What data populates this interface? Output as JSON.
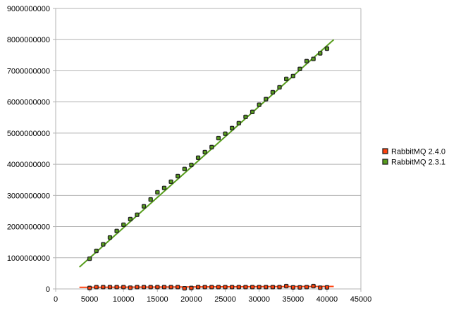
{
  "chart_data": {
    "type": "scatter",
    "xlim": [
      0,
      45000
    ],
    "ylim": [
      0,
      9000000000
    ],
    "xticks": [
      0,
      5000,
      10000,
      15000,
      20000,
      25000,
      30000,
      35000,
      40000,
      45000
    ],
    "yticks": [
      0,
      1000000000,
      2000000000,
      3000000000,
      4000000000,
      5000000000,
      6000000000,
      7000000000,
      8000000000,
      9000000000
    ],
    "grid": true,
    "legend_position": "right",
    "x": [
      5000,
      6000,
      7000,
      8000,
      9000,
      10000,
      11000,
      12000,
      13000,
      14000,
      15000,
      16000,
      17000,
      18000,
      19000,
      20000,
      21000,
      22000,
      23000,
      24000,
      25000,
      26000,
      27000,
      28000,
      29000,
      30000,
      31000,
      32000,
      33000,
      34000,
      35000,
      36000,
      37000,
      38000,
      39000,
      40000
    ],
    "series": [
      {
        "name": "RabbitMQ 2.4.0",
        "color": "#ff420e",
        "trendline": [
          [
            3500,
            50000000
          ],
          [
            41000,
            80000000
          ]
        ],
        "values": [
          30000000,
          60000000,
          60000000,
          60000000,
          60000000,
          60000000,
          40000000,
          60000000,
          60000000,
          60000000,
          60000000,
          60000000,
          60000000,
          60000000,
          20000000,
          30000000,
          60000000,
          60000000,
          60000000,
          60000000,
          60000000,
          60000000,
          60000000,
          60000000,
          60000000,
          60000000,
          60000000,
          60000000,
          60000000,
          90000000,
          50000000,
          50000000,
          60000000,
          90000000,
          40000000,
          50000000
        ]
      },
      {
        "name": "RabbitMQ 2.3.1",
        "color": "#579d1c",
        "trendline": [
          [
            3500,
            700000000
          ],
          [
            41000,
            8000000000
          ]
        ],
        "values": [
          970000000,
          1220000000,
          1430000000,
          1650000000,
          1860000000,
          2060000000,
          2240000000,
          2380000000,
          2650000000,
          2870000000,
          3100000000,
          3240000000,
          3440000000,
          3620000000,
          3850000000,
          3980000000,
          4210000000,
          4390000000,
          4550000000,
          4840000000,
          4980000000,
          5160000000,
          5320000000,
          5520000000,
          5680000000,
          5910000000,
          6090000000,
          6310000000,
          6470000000,
          6740000000,
          6830000000,
          7060000000,
          7310000000,
          7380000000,
          7560000000,
          7710000000
        ]
      }
    ]
  }
}
